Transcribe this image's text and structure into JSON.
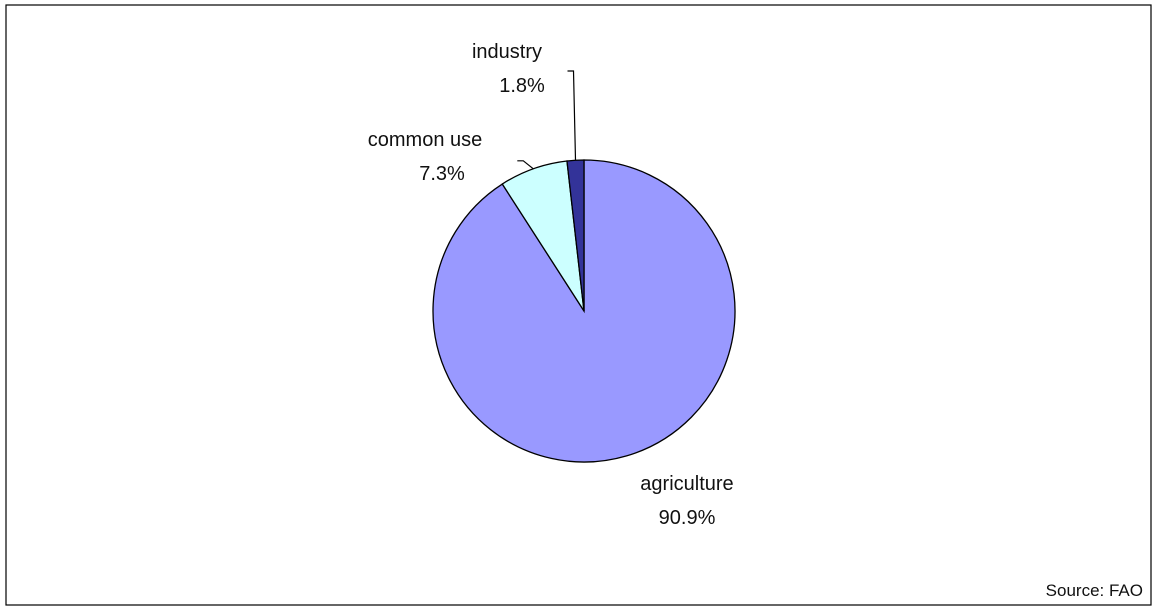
{
  "chart_data": {
    "type": "pie",
    "slices": [
      {
        "name": "agriculture",
        "value": 90.9,
        "value_label": "90.9%",
        "color": "#9999ff"
      },
      {
        "name": "common use",
        "value": 7.3,
        "value_label": "7.3%",
        "color": "#ccffff"
      },
      {
        "name": "industry",
        "value": 1.8,
        "value_label": "1.8%",
        "color": "#333399"
      }
    ],
    "legend": "none",
    "source": "Source: FAO"
  }
}
